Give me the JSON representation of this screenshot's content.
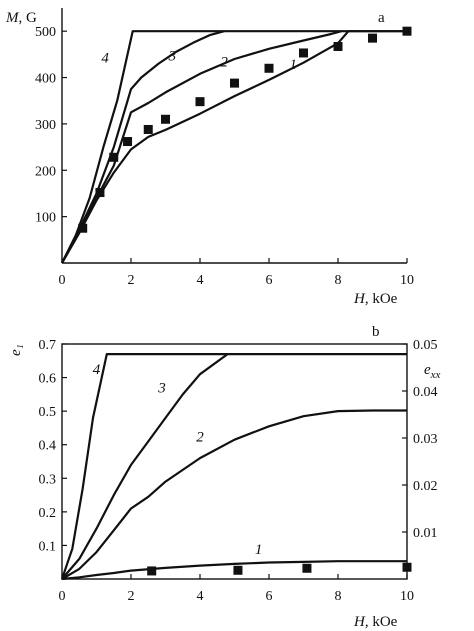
{
  "chart_data": [
    {
      "panel_label": "a",
      "type": "line",
      "xlabel_var": "H",
      "xlabel_unit": ", kOe",
      "ylabel_var": "M",
      "ylabel_unit": ", G",
      "xlim": [
        0,
        10
      ],
      "ylim": [
        0,
        550
      ],
      "xticks": [
        0,
        2,
        4,
        6,
        8,
        10
      ],
      "yticks": [
        100,
        200,
        300,
        400,
        500
      ],
      "grid": false,
      "series": [
        {
          "name": "1",
          "x": [
            0,
            0.5,
            1.0,
            1.5,
            2.0,
            2.5,
            3,
            4,
            5,
            6,
            7,
            8,
            8.3,
            10
          ],
          "y": [
            0,
            65,
            135,
            195,
            245,
            272,
            287,
            322,
            360,
            395,
            432,
            474,
            500,
            500
          ]
        },
        {
          "name": "2",
          "x": [
            0,
            0.5,
            1.0,
            1.5,
            2.0,
            2.5,
            3,
            4,
            5,
            6,
            7,
            7.8,
            8.1
          ],
          "y": [
            0,
            68,
            140,
            210,
            325,
            345,
            368,
            408,
            440,
            462,
            480,
            494,
            500
          ]
        },
        {
          "name": "3",
          "x": [
            0,
            0.5,
            1.0,
            1.5,
            2.0,
            2.3,
            2.8,
            3.3,
            3.8,
            4.3,
            4.7
          ],
          "y": [
            0,
            72,
            150,
            250,
            375,
            400,
            430,
            455,
            475,
            492,
            500
          ]
        },
        {
          "name": "4",
          "x": [
            0,
            0.4,
            0.8,
            1.2,
            1.6,
            2.05,
            10
          ],
          "y": [
            0,
            60,
            140,
            250,
            350,
            500,
            500
          ]
        }
      ],
      "markers": {
        "x": [
          0.6,
          1.1,
          1.5,
          1.9,
          2.5,
          3.0,
          4.0,
          5.0,
          6.0,
          7.0,
          8.0,
          9.0,
          10.0
        ],
        "y": [
          75,
          152,
          228,
          262,
          288,
          310,
          348,
          388,
          420,
          453,
          467,
          485,
          500
        ]
      },
      "curve_labels": [
        {
          "text": "1",
          "x": 6.7,
          "y": 418
        },
        {
          "text": "2",
          "x": 4.7,
          "y": 424
        },
        {
          "text": "3",
          "x": 3.2,
          "y": 437
        },
        {
          "text": "4",
          "x": 1.25,
          "y": 432
        }
      ]
    },
    {
      "panel_label": "b",
      "type": "line",
      "xlabel_var": "H",
      "xlabel_unit": ", kOe",
      "ylabel_left": "e₁",
      "ylabel_right_var": "e",
      "ylabel_right_sub": "xx",
      "xlim": [
        0,
        10
      ],
      "ylim": [
        0,
        0.7
      ],
      "ylim_right": [
        0,
        0.05
      ],
      "xticks": [
        0,
        2,
        4,
        6,
        8,
        10
      ],
      "yticks": [
        0.1,
        0.2,
        0.3,
        0.4,
        0.5,
        0.6,
        0.7
      ],
      "yticks_right": [
        0.01,
        0.02,
        0.03,
        0.04,
        0.05
      ],
      "grid": false,
      "series": [
        {
          "name": "1",
          "x": [
            0,
            0.5,
            1,
            1.5,
            2,
            3,
            4,
            5,
            6,
            7,
            8,
            9,
            10
          ],
          "y": [
            0,
            0.005,
            0.012,
            0.018,
            0.025,
            0.033,
            0.04,
            0.045,
            0.049,
            0.051,
            0.053,
            0.053,
            0.053
          ]
        },
        {
          "name": "2",
          "x": [
            0,
            0.5,
            1,
            1.5,
            2,
            2.5,
            3,
            4,
            5,
            6,
            7,
            8,
            9,
            10
          ],
          "y": [
            0,
            0.03,
            0.08,
            0.145,
            0.21,
            0.245,
            0.29,
            0.36,
            0.415,
            0.455,
            0.485,
            0.5,
            0.502,
            0.502
          ]
        },
        {
          "name": "3",
          "x": [
            0,
            0.5,
            1,
            1.5,
            2,
            2.5,
            3,
            3.5,
            4,
            4.8
          ],
          "y": [
            0,
            0.06,
            0.15,
            0.25,
            0.34,
            0.41,
            0.48,
            0.55,
            0.61,
            0.67
          ]
        },
        {
          "name": "4",
          "x": [
            0,
            0.3,
            0.6,
            0.9,
            1.3,
            10
          ],
          "y": [
            0,
            0.09,
            0.27,
            0.48,
            0.67,
            0.67
          ]
        }
      ],
      "markers": {
        "x": [
          2.6,
          5.1,
          7.1,
          10.0
        ],
        "y": [
          0.024,
          0.026,
          0.032,
          0.035
        ]
      },
      "curve_labels": [
        {
          "text": "1",
          "x": 5.7,
          "y": 0.075
        },
        {
          "text": "2",
          "x": 4.0,
          "y": 0.41
        },
        {
          "text": "3",
          "x": 2.9,
          "y": 0.555
        },
        {
          "text": "4",
          "x": 1.0,
          "y": 0.61
        }
      ]
    }
  ]
}
